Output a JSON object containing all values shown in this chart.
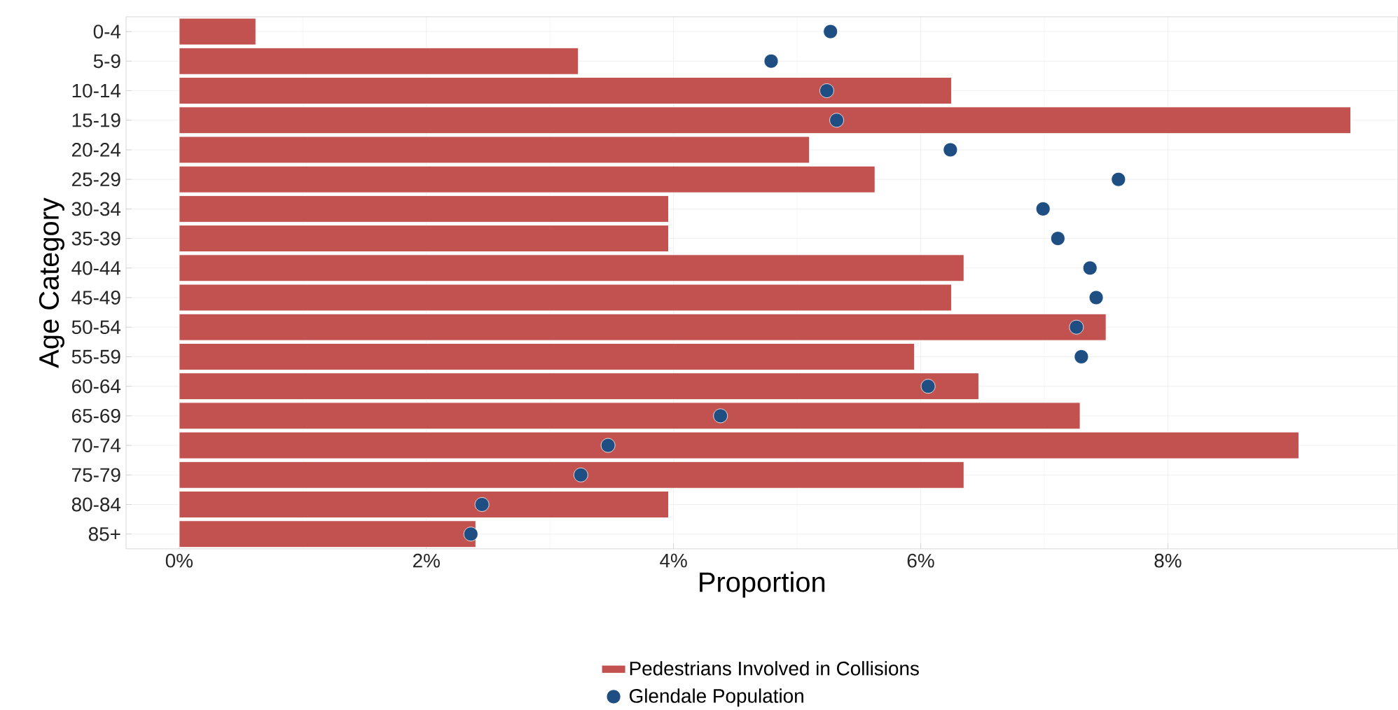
{
  "chart_data": {
    "type": "bar",
    "orientation": "horizontal",
    "xlabel": "Proportion",
    "ylabel": "Age Category",
    "categories": [
      "0-4",
      "5-9",
      "10-14",
      "15-19",
      "20-24",
      "25-29",
      "30-34",
      "35-39",
      "40-44",
      "45-49",
      "50-54",
      "55-59",
      "60-64",
      "65-69",
      "70-74",
      "75-79",
      "80-84",
      "85+"
    ],
    "series": [
      {
        "name": "Pedestrians Involved in Collisions",
        "type": "bar",
        "color": "#c1524f",
        "values": [
          0.62,
          3.23,
          6.25,
          9.48,
          5.1,
          5.63,
          3.96,
          3.96,
          6.35,
          6.25,
          7.5,
          5.95,
          6.47,
          7.29,
          9.06,
          6.35,
          3.96,
          2.4
        ]
      },
      {
        "name": "Glendale Population",
        "type": "scatter",
        "color": "#1f4f82",
        "marker": "circle",
        "values": [
          5.27,
          4.79,
          5.24,
          5.32,
          6.24,
          7.6,
          6.99,
          7.11,
          7.37,
          7.42,
          7.26,
          7.3,
          6.06,
          4.38,
          3.47,
          3.25,
          2.45,
          2.36
        ]
      }
    ],
    "xlim": [
      -0.43,
      9.86
    ],
    "xticks": [
      {
        "value": 0,
        "label": "0%"
      },
      {
        "value": 2,
        "label": "2%"
      },
      {
        "value": 4,
        "label": "4%"
      },
      {
        "value": 6,
        "label": "6%"
      },
      {
        "value": 8,
        "label": "8%"
      }
    ],
    "grid": true,
    "legend": "bottom"
  }
}
